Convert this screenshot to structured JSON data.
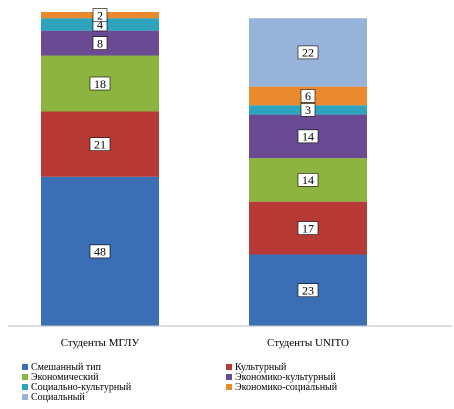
{
  "chart_data": {
    "type": "bar",
    "stacked": true,
    "categories": [
      "Студенты МГЛУ",
      "Студенты UNITO"
    ],
    "series": [
      {
        "name": "Смешанный тип",
        "color": "#3a6fb5",
        "values": [
          48,
          23
        ]
      },
      {
        "name": "Культурный",
        "color": "#b83a36",
        "values": [
          21,
          17
        ]
      },
      {
        "name": "Экономический",
        "color": "#8db43f",
        "values": [
          18,
          14
        ]
      },
      {
        "name": "Экономико-культурный",
        "color": "#6a4a93",
        "values": [
          8,
          14
        ]
      },
      {
        "name": "Социально-культурный",
        "color": "#2ea3bd",
        "values": [
          4,
          3
        ]
      },
      {
        "name": "Экономико-социальный",
        "color": "#ea8a2e",
        "values": [
          2,
          6
        ]
      },
      {
        "name": "Социальный",
        "color": "#98b3da",
        "values": [
          0,
          22
        ]
      }
    ],
    "title": "",
    "xlabel": "",
    "ylabel": "",
    "ylim": [
      0,
      101
    ],
    "grid": false,
    "legend_position": "bottom"
  }
}
